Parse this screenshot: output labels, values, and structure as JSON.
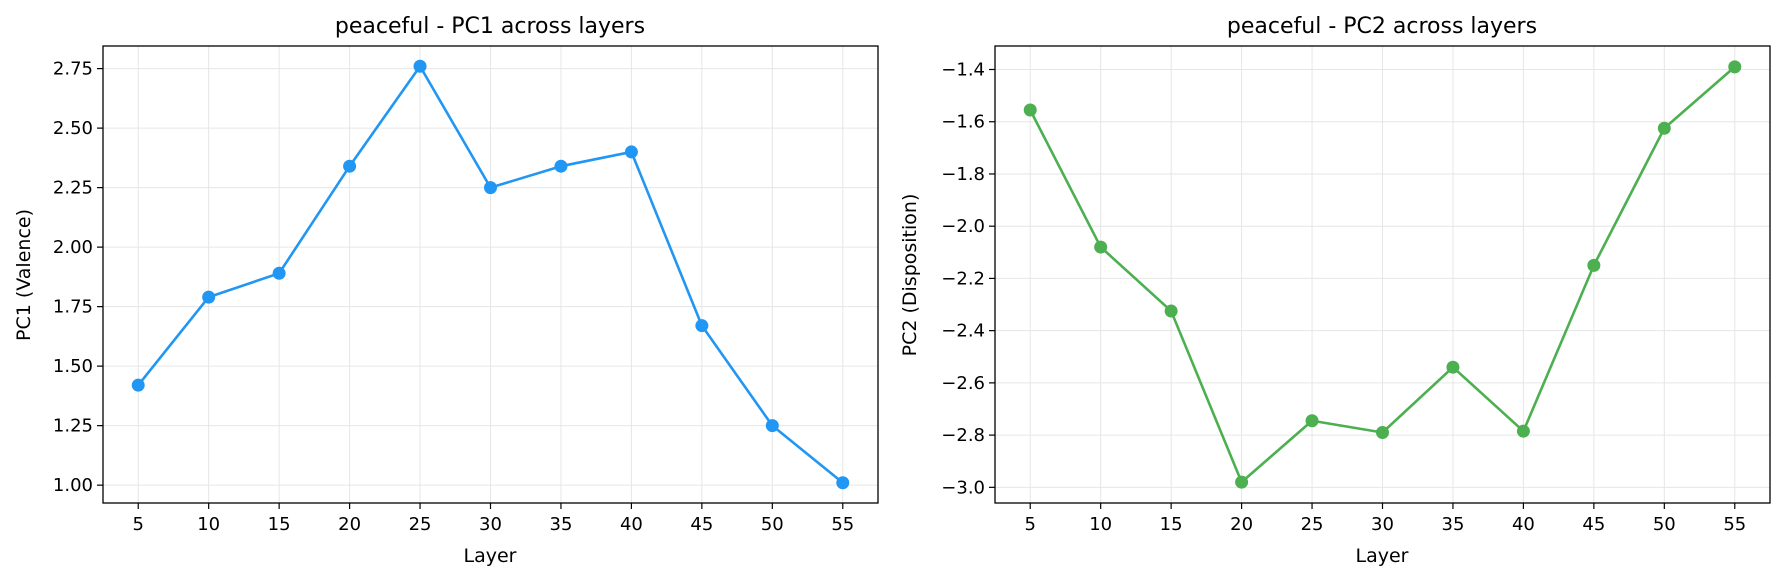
{
  "chart_data": [
    {
      "type": "line",
      "title": "peaceful - PC1 across layers",
      "xlabel": "Layer",
      "ylabel": "PC1 (Valence)",
      "x": [
        5,
        10,
        15,
        20,
        25,
        30,
        35,
        40,
        45,
        50,
        55
      ],
      "series": [
        {
          "values": [
            1.42,
            1.79,
            1.89,
            2.34,
            2.76,
            2.25,
            2.34,
            2.4,
            1.67,
            1.25,
            1.01
          ],
          "color": "#2196F3"
        }
      ],
      "xlim": [
        2.5,
        57.5
      ],
      "ylim": [
        0.925,
        2.845
      ],
      "xticks": [
        5,
        10,
        15,
        20,
        25,
        30,
        35,
        40,
        45,
        50,
        55
      ],
      "yticks": [
        1.0,
        1.25,
        1.5,
        1.75,
        2.0,
        2.25,
        2.5,
        2.75
      ],
      "ytick_labels": [
        "1.00",
        "1.25",
        "1.50",
        "1.75",
        "2.00",
        "2.25",
        "2.50",
        "2.75"
      ],
      "grid": true,
      "marker": "circle"
    },
    {
      "type": "line",
      "title": "peaceful - PC2 across layers",
      "xlabel": "Layer",
      "ylabel": "PC2 (Disposition)",
      "x": [
        5,
        10,
        15,
        20,
        25,
        30,
        35,
        40,
        45,
        50,
        55
      ],
      "series": [
        {
          "values": [
            -1.555,
            -2.08,
            -2.325,
            -2.98,
            -2.745,
            -2.79,
            -2.54,
            -2.785,
            -2.15,
            -1.625,
            -1.39
          ],
          "color": "#4CAF50"
        }
      ],
      "xlim": [
        2.5,
        57.5
      ],
      "ylim": [
        -3.06,
        -1.31
      ],
      "xticks": [
        5,
        10,
        15,
        20,
        25,
        30,
        35,
        40,
        45,
        50,
        55
      ],
      "yticks": [
        -3.0,
        -2.8,
        -2.6,
        -2.4,
        -2.2,
        -2.0,
        -1.8,
        -1.6,
        -1.4
      ],
      "ytick_labels": [
        "−3.0",
        "−2.8",
        "−2.6",
        "−2.4",
        "−2.2",
        "−2.0",
        "−1.8",
        "−1.6",
        "−1.4"
      ],
      "grid": true,
      "marker": "circle"
    }
  ]
}
